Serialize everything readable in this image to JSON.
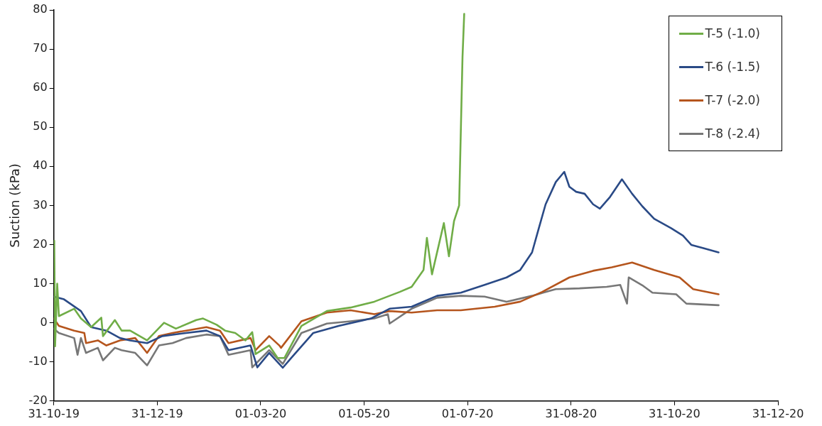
{
  "chart_data": {
    "type": "line",
    "ylabel": "Suction (kPa)",
    "xlim": [
      "2019-10-31",
      "2020-12-31"
    ],
    "xticks": [
      {
        "value": "2019-10-31",
        "label": "31-10-19"
      },
      {
        "value": "2019-12-31",
        "label": "31-12-19"
      },
      {
        "value": "2020-03-01",
        "label": "01-03-20"
      },
      {
        "value": "2020-05-01",
        "label": "01-05-20"
      },
      {
        "value": "2020-07-01",
        "label": "01-07-20"
      },
      {
        "value": "2020-08-31",
        "label": "31-08-20"
      },
      {
        "value": "2020-10-31",
        "label": "31-10-20"
      },
      {
        "value": "2020-12-31",
        "label": "31-12-20"
      }
    ],
    "ylim": [
      -20,
      80
    ],
    "yticks": [
      -20,
      -10,
      0,
      10,
      20,
      30,
      40,
      50,
      60,
      70,
      80
    ],
    "grid": false,
    "legend": "top right",
    "marker": "none",
    "line_style": "solid",
    "series": [
      {
        "name": "T-5 (-1.0)",
        "color": "#70ad47",
        "x": [
          "2019-10-31T06:00",
          "2019-10-31T18:00",
          "2019-11-02",
          "2019-11-03",
          "2019-11-12",
          "2019-11-16",
          "2019-11-22",
          "2019-11-28",
          "2019-11-29",
          "2019-12-06",
          "2019-12-10",
          "2019-12-15",
          "2019-12-25",
          "2020-01-04",
          "2020-01-11",
          "2020-01-23",
          "2020-01-27",
          "2020-02-04",
          "2020-02-09",
          "2020-02-15",
          "2020-02-21",
          "2020-02-25",
          "2020-02-27",
          "2020-03-06",
          "2020-03-11",
          "2020-03-15",
          "2020-03-25",
          "2020-04-09",
          "2020-04-23",
          "2020-05-07",
          "2020-05-22",
          "2020-05-29",
          "2020-06-05",
          "2020-06-07",
          "2020-06-10",
          "2020-06-17",
          "2020-06-20",
          "2020-06-23",
          "2020-06-26",
          "2020-06-28",
          "2020-06-29"
        ],
        "values": [
          21,
          -6,
          10,
          1.7,
          3.6,
          1.1,
          -1.1,
          1.3,
          -3.4,
          0.7,
          -2,
          -2,
          -4.5,
          0,
          -1.5,
          0.7,
          1.1,
          -0.5,
          -2,
          -2.6,
          -4.5,
          -2.4,
          -8,
          -5.8,
          -9,
          -9,
          -0.8,
          3,
          3.9,
          5.4,
          7.9,
          9.2,
          13.5,
          21.7,
          12.4,
          25.5,
          17,
          26,
          30,
          68,
          79
        ]
      },
      {
        "name": "T-6 (-1.5)",
        "color": "#2a4a86",
        "x": [
          "2019-10-31",
          "2019-11-06",
          "2019-11-16",
          "2019-11-22",
          "2019-12-01",
          "2019-12-09",
          "2019-12-15",
          "2019-12-25",
          "2020-01-03",
          "2020-01-17",
          "2020-01-29",
          "2020-02-06",
          "2020-02-11",
          "2020-02-24",
          "2020-02-28",
          "2020-03-06",
          "2020-03-14",
          "2020-03-19",
          "2020-04-01",
          "2020-04-16",
          "2020-05-05",
          "2020-05-16",
          "2020-05-29",
          "2020-06-13",
          "2020-06-27",
          "2020-07-11",
          "2020-07-24",
          "2020-08-01",
          "2020-08-08",
          "2020-08-12",
          "2020-08-16",
          "2020-08-22",
          "2020-08-27",
          "2020-08-30",
          "2020-09-03",
          "2020-09-08",
          "2020-09-13",
          "2020-09-17",
          "2020-09-23",
          "2020-09-30",
          "2020-10-06",
          "2020-10-12",
          "2020-10-19",
          "2020-10-29",
          "2020-11-05",
          "2020-11-10",
          "2020-11-17",
          "2020-11-26"
        ],
        "values": [
          6.7,
          6,
          3,
          -1.1,
          -2,
          -3.9,
          -4.5,
          -5.2,
          -3.4,
          -2.6,
          -2,
          -3.4,
          -7,
          -5.8,
          -11.4,
          -7.7,
          -11.5,
          -9,
          -2.6,
          -0.8,
          1.1,
          3.6,
          4.1,
          6.9,
          7.7,
          9.7,
          11.6,
          13.5,
          18,
          24.2,
          30.3,
          36,
          38.6,
          34.8,
          33.5,
          33,
          30.3,
          29.2,
          32.2,
          36.7,
          33,
          29.8,
          26.6,
          24.2,
          22.3,
          19.9,
          19.1,
          18
        ]
      },
      {
        "name": "T-7 (-2.0)",
        "color": "#b5551d",
        "x": [
          "2019-10-31",
          "2019-11-03",
          "2019-11-12",
          "2019-11-18",
          "2019-11-19",
          "2019-11-26",
          "2019-12-01",
          "2019-12-09",
          "2019-12-18",
          "2019-12-25",
          "2020-01-01",
          "2020-01-09",
          "2020-01-17",
          "2020-01-29",
          "2020-02-06",
          "2020-02-11",
          "2020-02-24",
          "2020-02-27",
          "2020-03-06",
          "2020-03-12",
          "2020-03-13",
          "2020-03-25",
          "2020-04-09",
          "2020-04-23",
          "2020-05-07",
          "2020-05-16",
          "2020-05-29",
          "2020-06-13",
          "2020-06-27",
          "2020-07-17",
          "2020-08-01",
          "2020-08-14",
          "2020-08-30",
          "2020-09-13",
          "2020-09-24",
          "2020-10-06",
          "2020-10-19",
          "2020-11-03",
          "2020-11-11",
          "2020-11-26"
        ],
        "values": [
          1.1,
          -0.8,
          -2,
          -2.6,
          -5.2,
          -4.5,
          -5.8,
          -4.5,
          -3.9,
          -7.7,
          -3.4,
          -2.6,
          -2,
          -1.1,
          -2,
          -5.2,
          -3.9,
          -7,
          -3.4,
          -5.8,
          -6.4,
          0.4,
          2.6,
          3.2,
          2.2,
          3,
          2.6,
          3.2,
          3.2,
          4.1,
          5.4,
          7.9,
          11.6,
          13.3,
          14.2,
          15.4,
          13.5,
          11.6,
          8.6,
          7.3
        ]
      },
      {
        "name": "T-8 (-2.4)",
        "color": "#777777",
        "x": [
          "2019-10-31",
          "2019-11-03",
          "2019-11-12",
          "2019-11-14",
          "2019-11-16",
          "2019-11-19",
          "2019-11-26",
          "2019-11-29",
          "2019-12-06",
          "2019-12-10",
          "2019-12-18",
          "2019-12-25",
          "2020-01-01",
          "2020-01-09",
          "2020-01-17",
          "2020-01-29",
          "2020-02-06",
          "2020-02-11",
          "2020-02-24",
          "2020-02-25",
          "2020-03-06",
          "2020-03-14",
          "2020-03-25",
          "2020-04-09",
          "2020-04-23",
          "2020-05-07",
          "2020-05-15",
          "2020-05-16",
          "2020-05-29",
          "2020-06-13",
          "2020-06-27",
          "2020-07-11",
          "2020-07-24",
          "2020-08-08",
          "2020-08-22",
          "2020-09-05",
          "2020-09-21",
          "2020-09-29",
          "2020-10-03",
          "2020-10-04",
          "2020-10-12",
          "2020-10-18",
          "2020-11-01",
          "2020-11-07",
          "2020-11-26"
        ],
        "values": [
          -1.5,
          -2.6,
          -3.9,
          -8.2,
          -3.9,
          -7.7,
          -6.4,
          -9.6,
          -6.4,
          -7,
          -7.7,
          -10.9,
          -5.8,
          -5.2,
          -3.9,
          -3,
          -3.4,
          -8.2,
          -7,
          -11.4,
          -7,
          -10.5,
          -2.6,
          -0.2,
          0.4,
          1.1,
          2.2,
          -0.2,
          3.6,
          6.4,
          6.9,
          6.7,
          5.4,
          6.9,
          8.6,
          8.8,
          9.2,
          9.7,
          4.9,
          11.6,
          9.6,
          7.7,
          7.3,
          4.9,
          4.5
        ]
      }
    ]
  }
}
